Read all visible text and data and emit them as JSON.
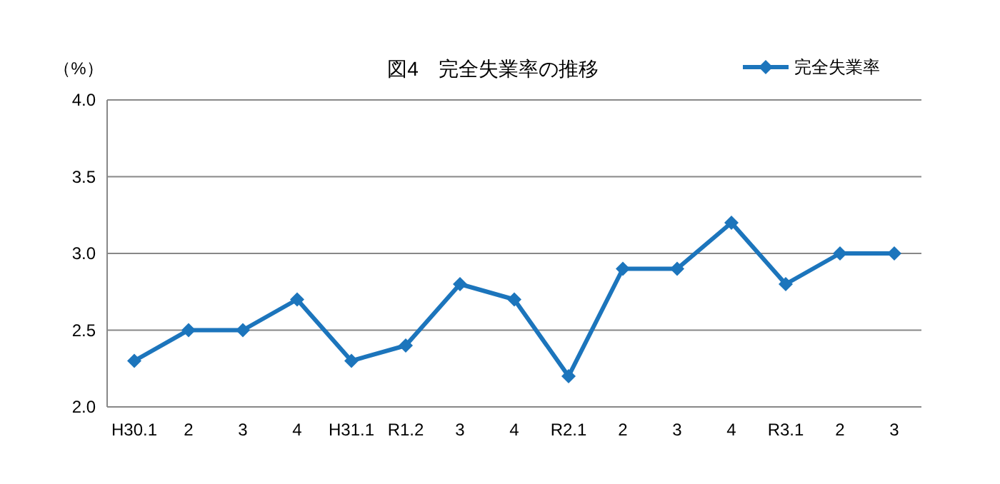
{
  "chart_data": {
    "type": "line",
    "title": "図4　完全失業率の推移",
    "ylabel": "（%）",
    "categories": [
      "H30.1",
      "2",
      "3",
      "4",
      "H31.1",
      "R1.2",
      "3",
      "4",
      "R2.1",
      "2",
      "3",
      "4",
      "R3.1",
      "2",
      "3"
    ],
    "series": [
      {
        "name": "完全失業率",
        "color": "#1c75bc",
        "values": [
          2.3,
          2.5,
          2.5,
          2.7,
          2.3,
          2.4,
          2.8,
          2.7,
          2.2,
          2.9,
          2.9,
          3.2,
          2.8,
          3.0,
          3.0
        ]
      }
    ],
    "ylim": [
      2.0,
      4.0
    ],
    "yticks": [
      {
        "value": 2.0,
        "label": "2.0"
      },
      {
        "value": 2.5,
        "label": "2.5"
      },
      {
        "value": 3.0,
        "label": "3.0"
      },
      {
        "value": 3.5,
        "label": "3.5"
      },
      {
        "value": 4.0,
        "label": "4.0"
      }
    ],
    "grid": "y",
    "legend": "top right",
    "marker": "diamond",
    "line_style": "solid"
  }
}
